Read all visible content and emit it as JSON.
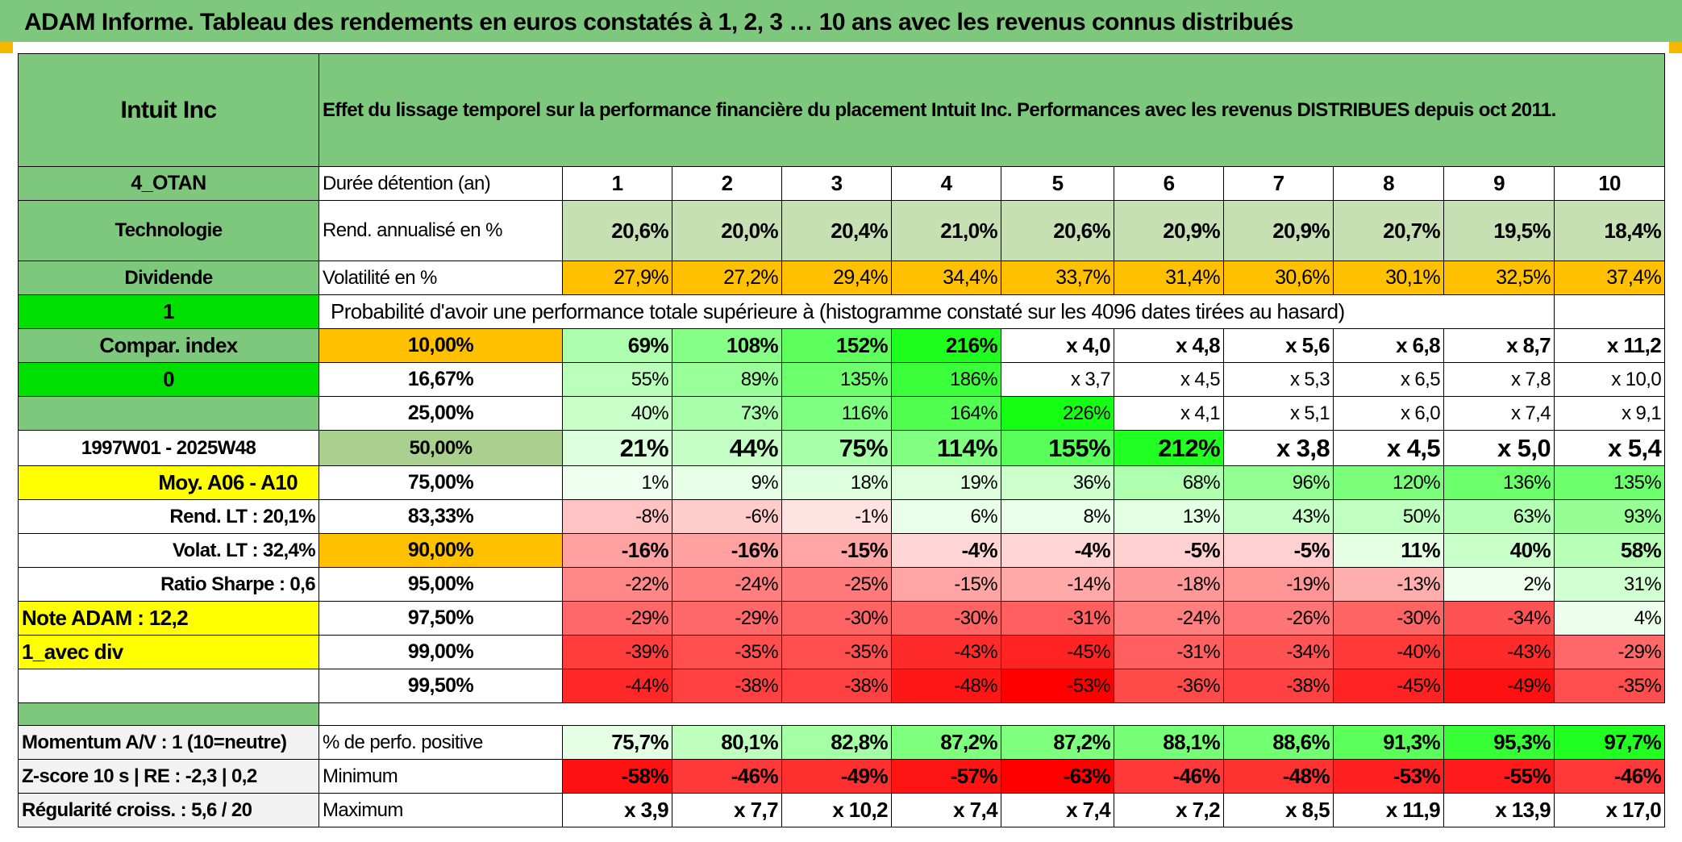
{
  "banner_title": "ADAM Informe. Tableau des rendements en euros constatés à 1, 2, 3 … 10 ans avec les revenus connus distribués",
  "header": {
    "company": "Intuit Inc",
    "description": "Effet du lissage temporel sur la performance financière du placement Intuit Inc. Performances avec les revenus DISTRIBUES depuis oct 2011."
  },
  "side": {
    "code": "4_OTAN",
    "sector": "Technologie",
    "type": "Dividende",
    "flag1": "1",
    "compar": "Compar. index",
    "flag0": "0",
    "period": "1997W01 - 2025W48",
    "moy": "Moy. A06 - A10",
    "rend_lt": "Rend. LT :   20,1%",
    "volat_lt": "Volat. LT :   32,4%",
    "sharpe": "Ratio Sharpe :    0,6",
    "note": "Note ADAM : 12,2",
    "avec_div": "1_avec div"
  },
  "labels": {
    "duree": "Durée détention (an)",
    "rend": "Rend. annualisé en %",
    "vol": "Volatilité en %",
    "prob": "Probabilité d'avoir une performance totale supérieure à (histogramme constaté sur les 4096 dates tirées au hasard)",
    "pos": "% de perfo. positive",
    "min": "Minimum",
    "max": "Maximum"
  },
  "years": [
    "1",
    "2",
    "3",
    "4",
    "5",
    "6",
    "7",
    "8",
    "9",
    "10"
  ],
  "rend": [
    "20,6%",
    "20,0%",
    "20,4%",
    "21,0%",
    "20,6%",
    "20,9%",
    "20,9%",
    "20,7%",
    "19,5%",
    "18,4%"
  ],
  "vol": [
    "27,9%",
    "27,2%",
    "29,4%",
    "34,4%",
    "33,7%",
    "31,4%",
    "30,6%",
    "30,1%",
    "32,5%",
    "37,4%"
  ],
  "prob_rows": [
    {
      "pct": "10,00%",
      "vals": [
        "69%",
        "108%",
        "152%",
        "216%",
        "x 4,0",
        "x 4,8",
        "x 5,6",
        "x 6,8",
        "x 8,7",
        "x 11,2"
      ]
    },
    {
      "pct": "16,67%",
      "vals": [
        "55%",
        "89%",
        "135%",
        "186%",
        "x 3,7",
        "x 4,5",
        "x 5,3",
        "x 6,5",
        "x 7,8",
        "x 10,0"
      ]
    },
    {
      "pct": "25,00%",
      "vals": [
        "40%",
        "73%",
        "116%",
        "164%",
        "226%",
        "x 4,1",
        "x 5,1",
        "x 6,0",
        "x 7,4",
        "x 9,1"
      ]
    },
    {
      "pct": "50,00%",
      "vals": [
        "21%",
        "44%",
        "75%",
        "114%",
        "155%",
        "212%",
        "x 3,8",
        "x 4,5",
        "x 5,0",
        "x 5,4"
      ]
    },
    {
      "pct": "75,00%",
      "vals": [
        "1%",
        "9%",
        "18%",
        "19%",
        "36%",
        "68%",
        "96%",
        "120%",
        "136%",
        "135%"
      ]
    },
    {
      "pct": "83,33%",
      "vals": [
        "-8%",
        "-6%",
        "-1%",
        "6%",
        "8%",
        "13%",
        "43%",
        "50%",
        "63%",
        "93%"
      ]
    },
    {
      "pct": "90,00%",
      "vals": [
        "-16%",
        "-16%",
        "-15%",
        "-4%",
        "-4%",
        "-5%",
        "-5%",
        "11%",
        "40%",
        "58%"
      ]
    },
    {
      "pct": "95,00%",
      "vals": [
        "-22%",
        "-24%",
        "-25%",
        "-15%",
        "-14%",
        "-18%",
        "-19%",
        "-13%",
        "2%",
        "31%"
      ]
    },
    {
      "pct": "97,50%",
      "vals": [
        "-29%",
        "-29%",
        "-30%",
        "-30%",
        "-31%",
        "-24%",
        "-26%",
        "-30%",
        "-34%",
        "4%"
      ]
    },
    {
      "pct": "99,00%",
      "vals": [
        "-39%",
        "-35%",
        "-35%",
        "-43%",
        "-45%",
        "-31%",
        "-34%",
        "-40%",
        "-43%",
        "-29%"
      ]
    },
    {
      "pct": "99,50%",
      "vals": [
        "-44%",
        "-38%",
        "-38%",
        "-48%",
        "-53%",
        "-36%",
        "-38%",
        "-45%",
        "-49%",
        "-35%"
      ]
    }
  ],
  "footer": {
    "momentum": "Momentum A/V : 1 (10=neutre)",
    "zscore": "Z-score 10 s | RE : -2,3 | 0,2",
    "regul": "Régularité croiss. : 5,6 / 20",
    "pos": [
      "75,7%",
      "80,1%",
      "82,8%",
      "87,2%",
      "87,2%",
      "88,1%",
      "88,6%",
      "91,3%",
      "95,3%",
      "97,7%"
    ],
    "min": [
      "-58%",
      "-46%",
      "-49%",
      "-57%",
      "-63%",
      "-46%",
      "-48%",
      "-53%",
      "-55%",
      "-46%"
    ],
    "max": [
      "x 3,9",
      "x 7,7",
      "x 10,2",
      "x 7,4",
      "x 7,4",
      "x 7,2",
      "x 8,5",
      "x 11,9",
      "x 13,9",
      "x 17,0"
    ]
  }
}
